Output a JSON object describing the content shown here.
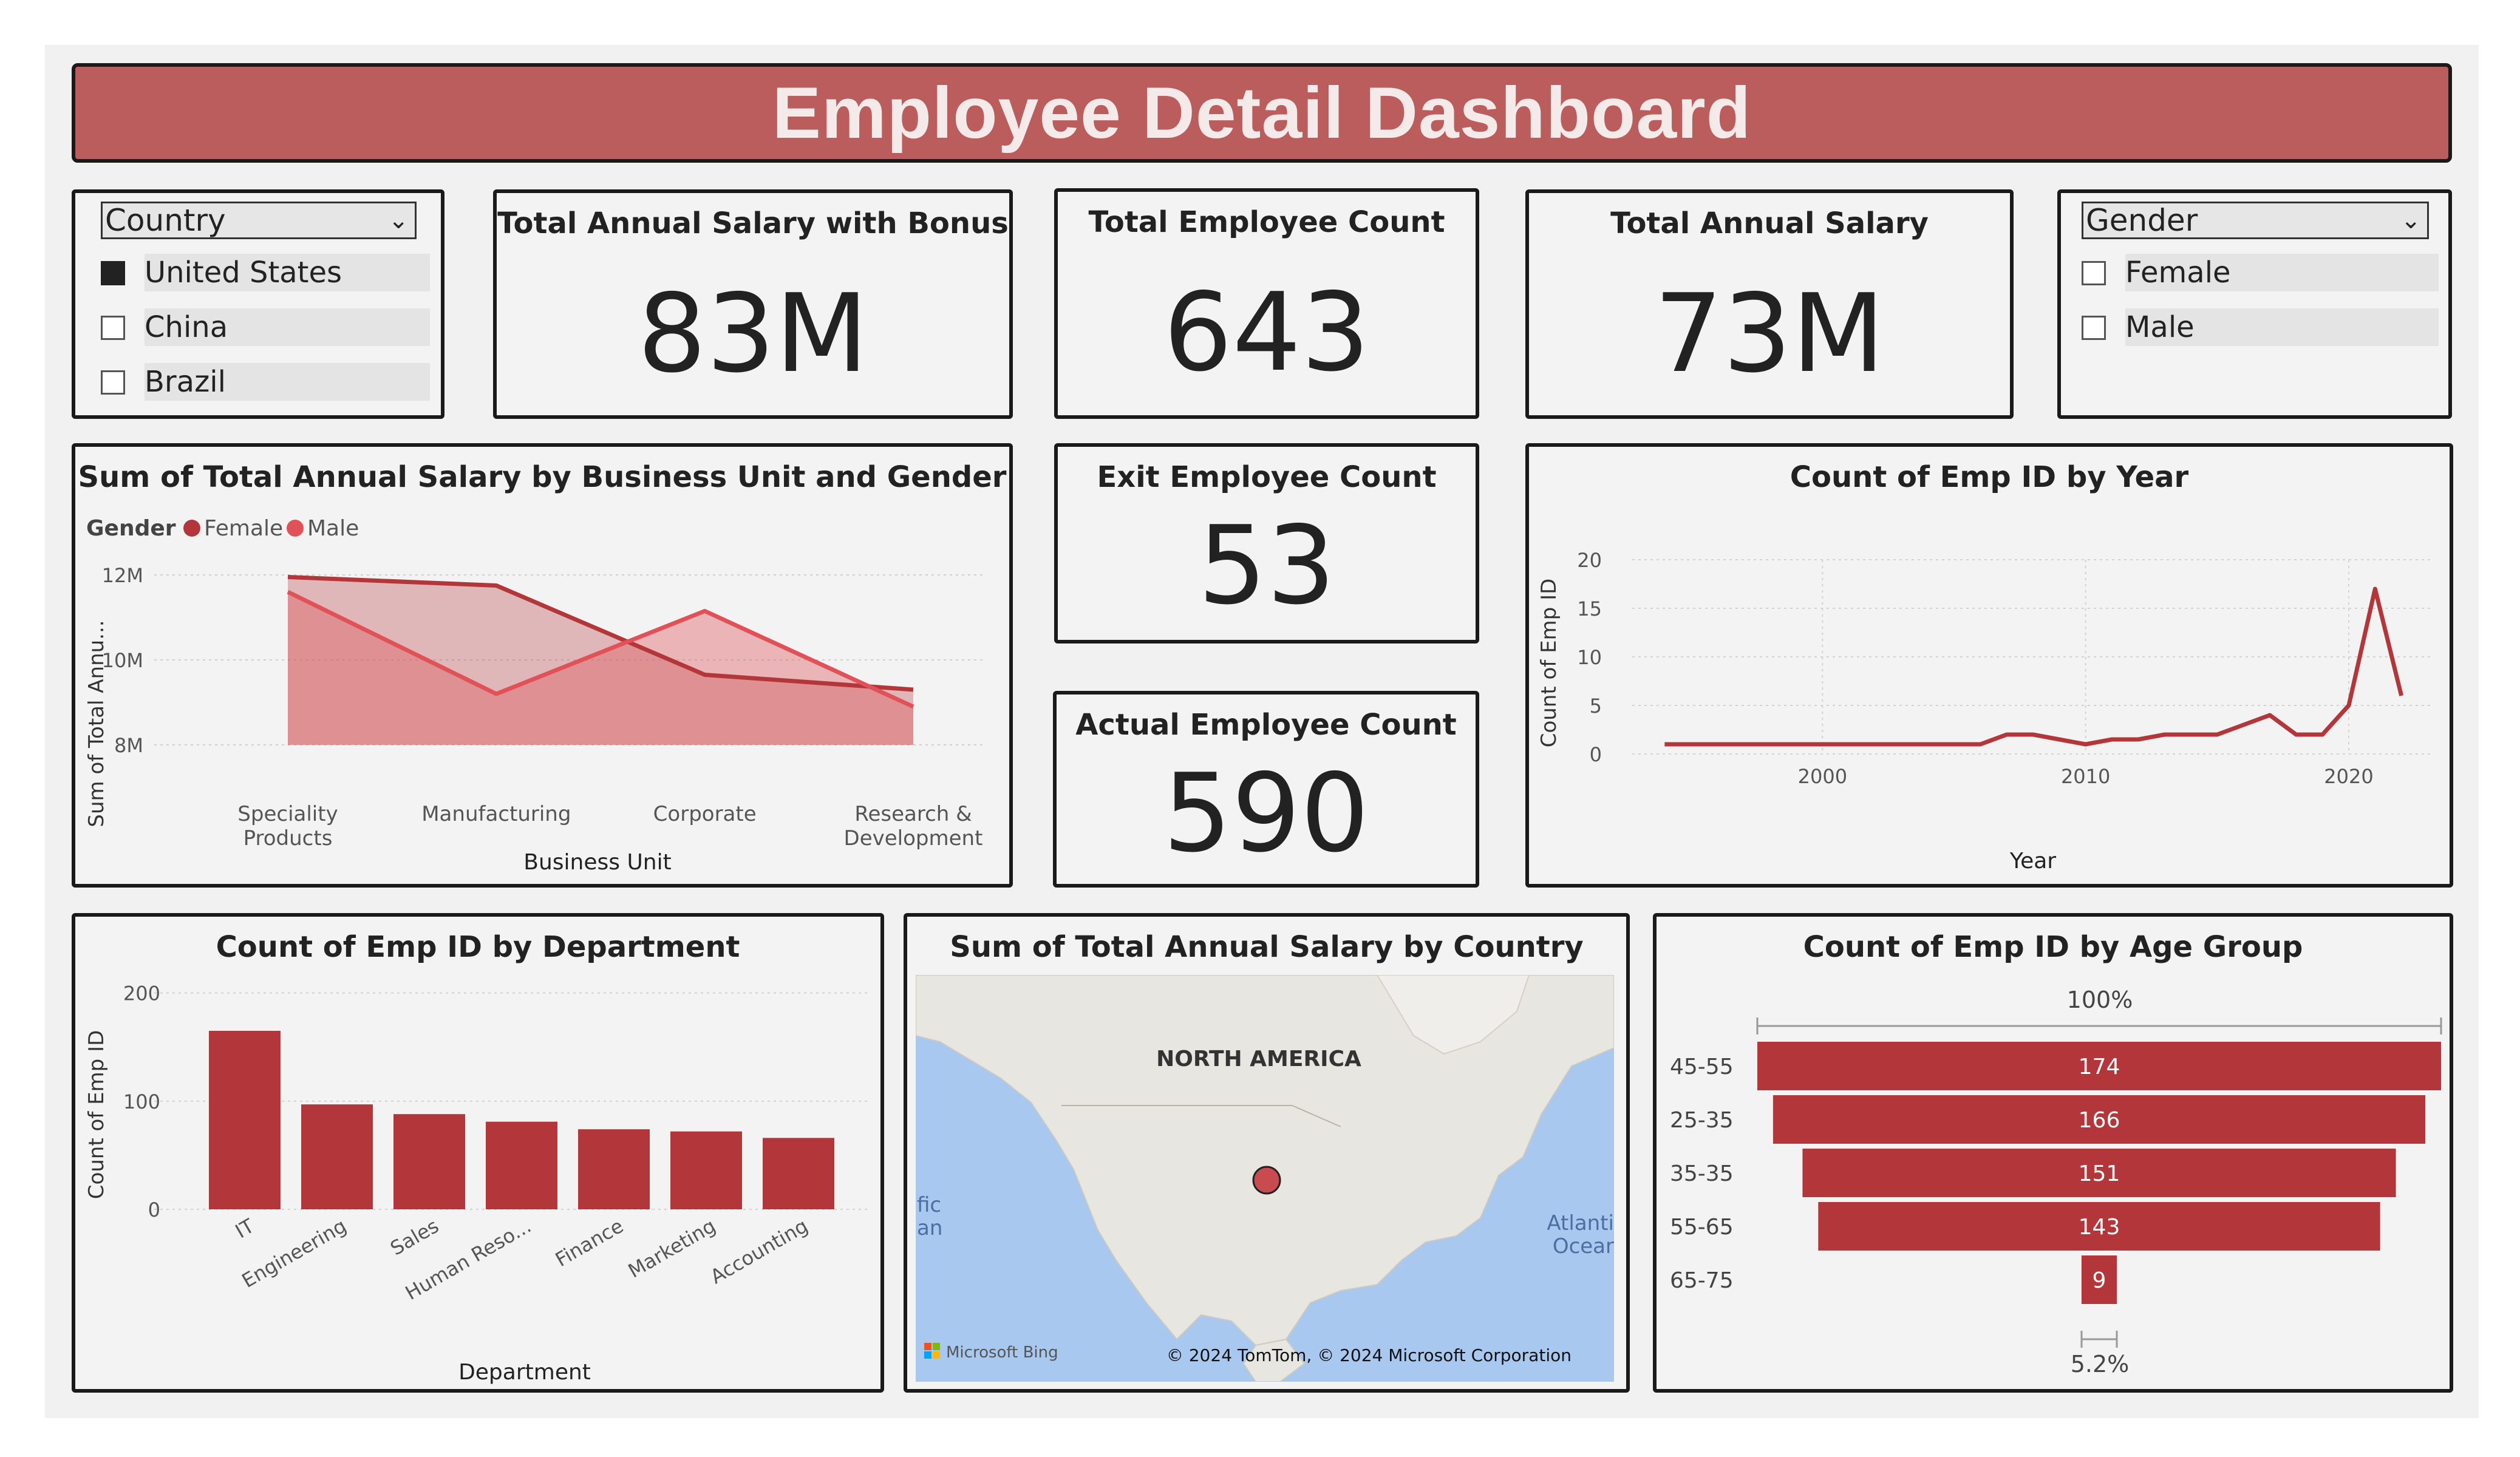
{
  "title": "Employee Detail Dashboard",
  "colors": {
    "banner": "#bc5d5d",
    "female": "#b3373a",
    "male": "#e05258",
    "bar": "#b3373a",
    "line": "#b3373a"
  },
  "country_slicer": {
    "header": "Country",
    "items": [
      {
        "label": "United States",
        "checked": true
      },
      {
        "label": "China",
        "checked": false
      },
      {
        "label": "Brazil",
        "checked": false
      }
    ]
  },
  "gender_slicer": {
    "header": "Gender",
    "items": [
      {
        "label": "Female",
        "checked": false
      },
      {
        "label": "Male",
        "checked": false
      }
    ]
  },
  "kpis": {
    "salary_bonus": {
      "title": "Total Annual Salary with Bonus",
      "value": "83M"
    },
    "employee_count": {
      "title": "Total Employee Count",
      "value": "643"
    },
    "annual_salary": {
      "title": "Total Annual Salary",
      "value": "73M"
    },
    "exit_count": {
      "title": "Exit Employee Count",
      "value": "53"
    },
    "actual_count": {
      "title": "Actual Employee Count",
      "value": "590"
    }
  },
  "area_chart": {
    "title": "Sum of Total Annual Salary by Business Unit and Gender",
    "legend_title": "Gender",
    "xlabel": "Business Unit",
    "ylabel": "Sum of Total Annu...",
    "yticks": [
      "12M",
      "10M",
      "8M"
    ]
  },
  "year_chart": {
    "title": "Count of Emp ID by Year",
    "xlabel": "Year",
    "ylabel": "Count of Emp ID",
    "yticks": [
      "20",
      "15",
      "10",
      "5",
      "0"
    ],
    "xticks": [
      "2000",
      "2010",
      "2020"
    ]
  },
  "dept_chart": {
    "title": "Count of Emp ID by Department",
    "xlabel": "Department",
    "ylabel": "Count of Emp ID",
    "yticks": [
      "200",
      "100",
      "0"
    ]
  },
  "map": {
    "title": "Sum of Total Annual Salary by Country",
    "region_label": "NORTH AMERICA",
    "pacific_label_1": "fic",
    "pacific_label_2": "an",
    "atlantic_label_1": "Atlanti",
    "atlantic_label_2": "Ocear",
    "brand": "Microsoft Bing",
    "copyright": "© 2024 TomTom, © 2024 Microsoft Corporation"
  },
  "funnel": {
    "title": "Count of Emp ID by Age Group",
    "top_pct": "100%",
    "bottom_pct": "5.2%"
  },
  "chart_data": [
    {
      "type": "area",
      "title": "Sum of Total Annual Salary by Business Unit and Gender",
      "xlabel": "Business Unit",
      "ylabel": "Sum of Total Annu...",
      "categories": [
        "Speciality Products",
        "Manufacturing",
        "Corporate",
        "Research & Development"
      ],
      "series": [
        {
          "name": "Female",
          "values": [
            11.95,
            11.75,
            9.65,
            9.3
          ]
        },
        {
          "name": "Male",
          "values": [
            11.6,
            9.2,
            11.15,
            8.9
          ]
        }
      ],
      "unit": "M",
      "ylim": [
        7.5,
        12.5
      ],
      "legend": "top-left",
      "grid": true
    },
    {
      "type": "line",
      "title": "Count of Emp ID by Year",
      "xlabel": "Year",
      "ylabel": "Count of Emp ID",
      "x": [
        1994,
        1995,
        1996,
        1997,
        1998,
        1999,
        2000,
        2001,
        2002,
        2003,
        2004,
        2005,
        2006,
        2007,
        2008,
        2009,
        2010,
        2011,
        2012,
        2013,
        2014,
        2015,
        2016,
        2017,
        2018,
        2019,
        2020,
        2021,
        2022
      ],
      "values": [
        1,
        1,
        1,
        1,
        1,
        1,
        1,
        1,
        1,
        1,
        1,
        1,
        1,
        2,
        2,
        1.5,
        1,
        1.5,
        1.5,
        2,
        2,
        2,
        3,
        4,
        2,
        2,
        5,
        17,
        6
      ],
      "xlim": [
        1993,
        2023
      ],
      "ylim": [
        0,
        20
      ],
      "grid": true
    },
    {
      "type": "bar",
      "title": "Count of Emp ID by Department",
      "xlabel": "Department",
      "ylabel": "Count of Emp ID",
      "categories": [
        "IT",
        "Engineering",
        "Sales",
        "Human Reso...",
        "Finance",
        "Marketing",
        "Accounting"
      ],
      "values": [
        165,
        97,
        88,
        81,
        74,
        72,
        66
      ],
      "ylim": [
        0,
        220
      ],
      "grid": true
    },
    {
      "type": "bar",
      "title": "Count of Emp ID by Age Group",
      "categories": [
        "45-55",
        "25-35",
        "35-35",
        "55-65",
        "65-75"
      ],
      "values": [
        174,
        166,
        151,
        143,
        9
      ]
    }
  ]
}
